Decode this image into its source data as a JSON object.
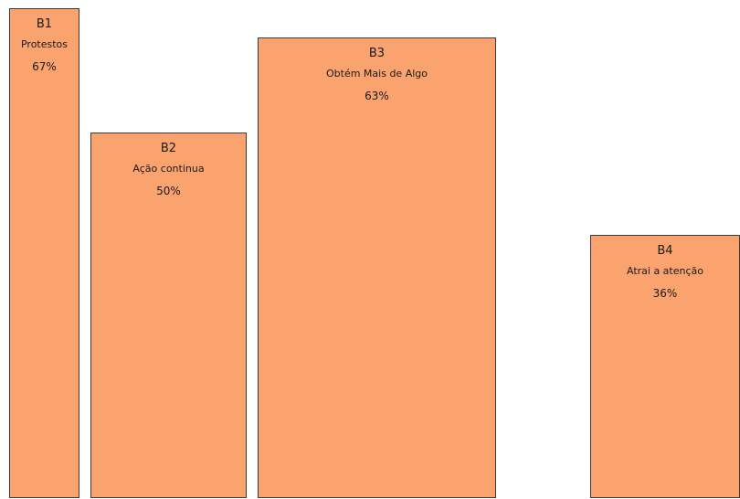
{
  "colors": {
    "bar_fill": "#fba36f",
    "bar_border": "#3a3a3a",
    "background": "#ffffff"
  },
  "chart_data": {
    "type": "bar",
    "categories": [
      "B1",
      "B2",
      "B3",
      "B4"
    ],
    "labels": [
      "Protestos",
      "Ação continua",
      "Obtém Mais de Algo",
      "Atrai a atenção"
    ],
    "values": [
      67,
      50,
      63,
      36
    ],
    "value_labels": [
      "67%",
      "50%",
      "63%",
      "36%"
    ],
    "ylim": [
      0,
      100
    ],
    "grid": false
  }
}
